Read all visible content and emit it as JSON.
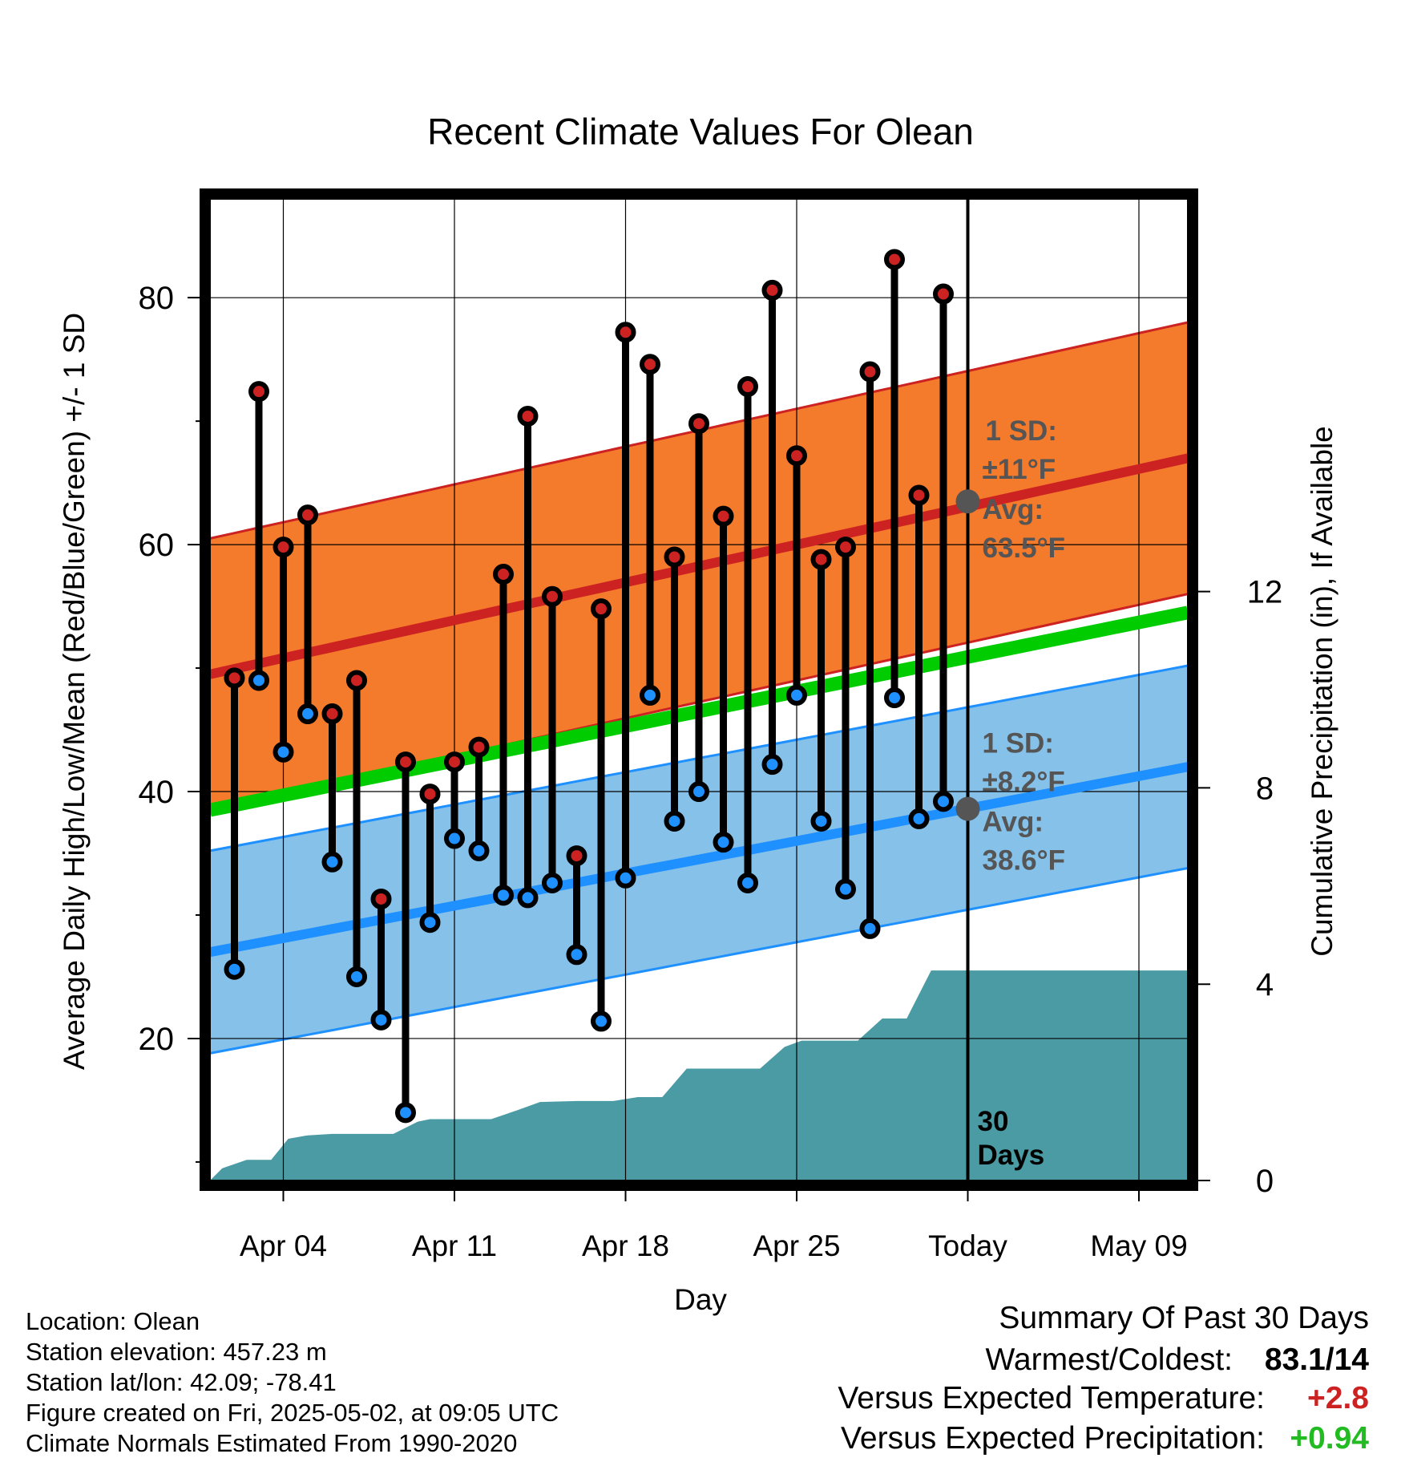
{
  "chart_data": {
    "type": "line",
    "title": "Recent Climate Values For Olean",
    "xlabel": "Day",
    "ylabel_left": "Average Daily High/Low/Mean (Red/Blue/Green) +/- 1 SD",
    "ylabel_right": "Cumulative Precipitation (in), If Available",
    "x_tick_labels": [
      "Apr 04",
      "Apr 11",
      "Apr 18",
      "Apr 25",
      "Today",
      "May 09"
    ],
    "y_left_ticks": [
      20,
      40,
      60,
      80
    ],
    "y_right_ticks": [
      0,
      4,
      8,
      12
    ],
    "ylim_left": [
      8.5,
      88
    ],
    "ylim_right": [
      0,
      20
    ],
    "xlim_days": [
      1,
      41
    ],
    "today_day": 32,
    "today_label": "30 Days",
    "colors": {
      "high": "#cc2222",
      "low": "#1e90ff",
      "mean": "#00cc00",
      "high_band": "#f47a2c",
      "low_band": "#85c1e9",
      "precip": "#4a9ba4",
      "avg_marker": "#555555"
    },
    "normals": {
      "high_avg_start": 49.5,
      "high_avg_end": 67.0,
      "high_sd": 11.0,
      "low_avg_start": 27.0,
      "low_avg_end": 42.0,
      "low_sd": 8.2,
      "mean_start": 38.5,
      "mean_end": 54.5
    },
    "annotations": {
      "high_sd_label": "1 SD:",
      "high_sd_value": "±11°F",
      "high_avg_label": "Avg:",
      "high_avg_value": "63.5°F",
      "low_sd_label": "1 SD:",
      "low_sd_value": "±8.2°F",
      "low_avg_label": "Avg:",
      "low_avg_value": "38.6°F",
      "today_high_avg": 63.5,
      "today_low_avg": 38.6
    },
    "daily": [
      {
        "day": 2,
        "high": 49.2,
        "low": 25.6
      },
      {
        "day": 3,
        "high": 72.4,
        "low": 49.0
      },
      {
        "day": 4,
        "high": 59.8,
        "low": 43.2
      },
      {
        "day": 5,
        "high": 62.4,
        "low": 46.3
      },
      {
        "day": 6,
        "high": 46.3,
        "low": 34.3
      },
      {
        "day": 7,
        "high": 49.0,
        "low": 25.0
      },
      {
        "day": 8,
        "high": 31.3,
        "low": 21.5
      },
      {
        "day": 9,
        "high": 42.4,
        "low": 14.0
      },
      {
        "day": 10,
        "high": 39.8,
        "low": 29.4
      },
      {
        "day": 11,
        "high": 42.4,
        "low": 36.2
      },
      {
        "day": 12,
        "high": 43.6,
        "low": 35.2
      },
      {
        "day": 13,
        "high": 57.6,
        "low": 31.6
      },
      {
        "day": 14,
        "high": 70.4,
        "low": 31.4
      },
      {
        "day": 15,
        "high": 55.8,
        "low": 32.6
      },
      {
        "day": 16,
        "high": 34.8,
        "low": 26.8
      },
      {
        "day": 17,
        "high": 54.8,
        "low": 21.4
      },
      {
        "day": 18,
        "high": 77.2,
        "low": 33.0
      },
      {
        "day": 19,
        "high": 74.6,
        "low": 47.8
      },
      {
        "day": 20,
        "high": 59.0,
        "low": 37.6
      },
      {
        "day": 21,
        "high": 69.8,
        "low": 40.0
      },
      {
        "day": 22,
        "high": 62.3,
        "low": 35.9
      },
      {
        "day": 23,
        "high": 72.8,
        "low": 32.6
      },
      {
        "day": 24,
        "high": 80.6,
        "low": 42.2
      },
      {
        "day": 25,
        "high": 67.2,
        "low": 47.8
      },
      {
        "day": 26,
        "high": 58.8,
        "low": 37.6
      },
      {
        "day": 27,
        "high": 59.8,
        "low": 32.1
      },
      {
        "day": 28,
        "high": 74.0,
        "low": 28.9
      },
      {
        "day": 29,
        "high": 83.1,
        "low": 47.6
      },
      {
        "day": 30,
        "high": 64.0,
        "low": 37.8
      },
      {
        "day": 31,
        "high": 80.3,
        "low": 39.2
      }
    ],
    "precip_cumulative": [
      {
        "day": 1,
        "value": 0.0
      },
      {
        "day": 1.5,
        "value": 0.25
      },
      {
        "day": 2.5,
        "value": 0.42
      },
      {
        "day": 3.5,
        "value": 0.42
      },
      {
        "day": 4.2,
        "value": 0.85
      },
      {
        "day": 5,
        "value": 0.92
      },
      {
        "day": 6,
        "value": 0.95
      },
      {
        "day": 8.5,
        "value": 0.95
      },
      {
        "day": 9.5,
        "value": 1.2
      },
      {
        "day": 10,
        "value": 1.25
      },
      {
        "day": 12.5,
        "value": 1.25
      },
      {
        "day": 13.5,
        "value": 1.42
      },
      {
        "day": 14.5,
        "value": 1.6
      },
      {
        "day": 16,
        "value": 1.62
      },
      {
        "day": 17.5,
        "value": 1.62
      },
      {
        "day": 18.5,
        "value": 1.7
      },
      {
        "day": 19.5,
        "value": 1.7
      },
      {
        "day": 20.5,
        "value": 2.28
      },
      {
        "day": 23.5,
        "value": 2.28
      },
      {
        "day": 24.5,
        "value": 2.72
      },
      {
        "day": 25.2,
        "value": 2.85
      },
      {
        "day": 27.5,
        "value": 2.85
      },
      {
        "day": 28.5,
        "value": 3.3
      },
      {
        "day": 29.5,
        "value": 3.3
      },
      {
        "day": 30.5,
        "value": 4.28
      },
      {
        "day": 41,
        "value": 4.28
      }
    ]
  },
  "footer": {
    "location": "Location: Olean",
    "elevation": "Station elevation: 457.23 m",
    "latlon": "Station lat/lon: 42.09; -78.41",
    "created": "Figure created on Fri, 2025-05-02, at 09:05 UTC",
    "normals": "Climate Normals Estimated From 1990-2020"
  },
  "summary": {
    "title": "Summary Of Past 30 Days",
    "warm_cold_label": "Warmest/Coldest:",
    "warm_cold_value": "83.1/14",
    "temp_label": "Versus Expected Temperature:",
    "temp_value": "+2.8",
    "temp_color": "#cc2222",
    "precip_label": "Versus Expected Precipitation:",
    "precip_value": "+0.94",
    "precip_color": "#22bb22"
  }
}
